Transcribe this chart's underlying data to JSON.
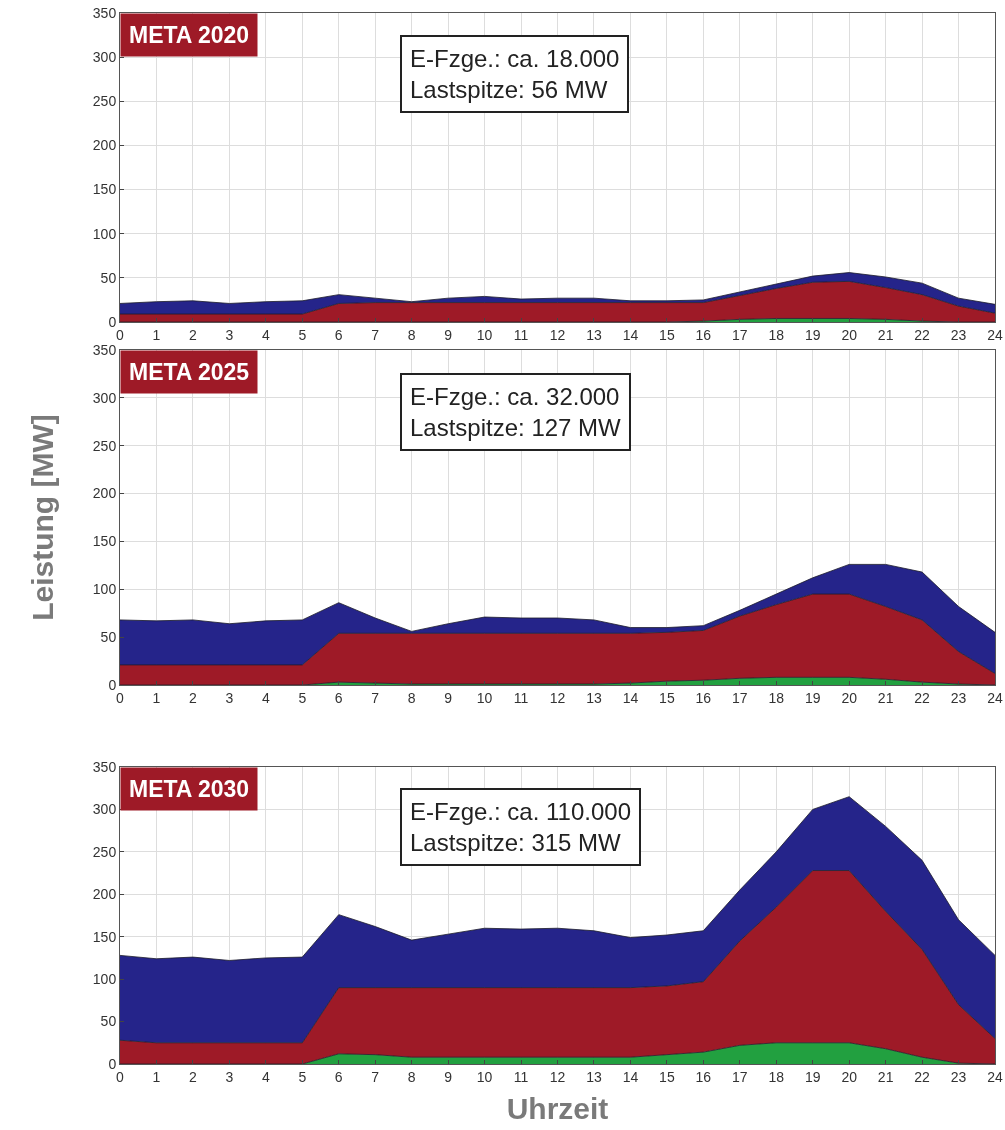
{
  "chart_data": [
    {
      "type": "area",
      "stacked": true,
      "annotations": [
        "META 2020",
        "E-Fzge.: ca. 18.000",
        "Lastspitze: 56 MW"
      ],
      "x": [
        0,
        1,
        2,
        3,
        4,
        5,
        6,
        7,
        8,
        9,
        10,
        11,
        12,
        13,
        14,
        15,
        16,
        17,
        18,
        19,
        20,
        21,
        22,
        23,
        24
      ],
      "xlim": [
        0,
        24
      ],
      "xticks": [
        0,
        1,
        2,
        3,
        4,
        5,
        6,
        7,
        8,
        9,
        10,
        11,
        12,
        13,
        14,
        15,
        16,
        17,
        18,
        19,
        20,
        21,
        22,
        23,
        24
      ],
      "ylim": [
        0,
        350
      ],
      "yticks": [
        0,
        50,
        100,
        150,
        200,
        250,
        300,
        350
      ],
      "grid": true,
      "series": [
        {
          "color": "#22a040",
          "values": [
            0,
            0,
            0,
            0,
            0,
            0,
            0,
            0,
            0,
            0,
            0,
            0,
            0,
            0,
            0,
            0,
            1,
            3,
            4,
            4,
            4,
            3,
            1,
            0,
            0
          ]
        },
        {
          "color": "#9e1a27",
          "values": [
            9,
            9,
            9,
            9,
            9,
            9,
            21,
            22,
            22,
            22,
            22,
            22,
            22,
            22,
            22,
            22,
            21,
            27,
            34,
            41,
            42,
            36,
            30,
            18,
            10
          ]
        },
        {
          "color": "#25248a",
          "values": [
            12,
            14,
            15,
            12,
            14,
            15,
            10,
            5,
            1,
            5,
            7,
            4,
            5,
            5,
            2,
            2,
            3,
            4,
            5,
            7,
            10,
            12,
            13,
            9,
            10
          ]
        }
      ]
    },
    {
      "type": "area",
      "stacked": true,
      "ylabel": "Leistung [MW]",
      "annotations": [
        "META 2025",
        "E-Fzge.: ca. 32.000",
        "Lastspitze: 127 MW"
      ],
      "x": [
        0,
        1,
        2,
        3,
        4,
        5,
        6,
        7,
        8,
        9,
        10,
        11,
        12,
        13,
        14,
        15,
        16,
        17,
        18,
        19,
        20,
        21,
        22,
        23,
        24
      ],
      "xlim": [
        0,
        24
      ],
      "xticks": [
        0,
        1,
        2,
        3,
        4,
        5,
        6,
        7,
        8,
        9,
        10,
        11,
        12,
        13,
        14,
        15,
        16,
        17,
        18,
        19,
        20,
        21,
        22,
        23,
        24
      ],
      "ylim": [
        0,
        350
      ],
      "yticks": [
        0,
        50,
        100,
        150,
        200,
        250,
        300,
        350
      ],
      "grid": true,
      "series": [
        {
          "color": "#22a040",
          "values": [
            0,
            0,
            0,
            0,
            0,
            0,
            3,
            2,
            1,
            1,
            1,
            1,
            1,
            1,
            2,
            4,
            5,
            7,
            8,
            8,
            8,
            6,
            3,
            1,
            0
          ]
        },
        {
          "color": "#9e1a27",
          "values": [
            21,
            21,
            21,
            21,
            21,
            21,
            51,
            52,
            53,
            53,
            53,
            53,
            53,
            53,
            52,
            51,
            52,
            65,
            76,
            87,
            87,
            76,
            65,
            34,
            12
          ]
        },
        {
          "color": "#25248a",
          "values": [
            47,
            46,
            47,
            43,
            46,
            47,
            32,
            16,
            2,
            10,
            17,
            16,
            16,
            14,
            6,
            5,
            5,
            6,
            11,
            17,
            31,
            44,
            50,
            47,
            43
          ]
        }
      ]
    },
    {
      "type": "area",
      "stacked": true,
      "xlabel": "Uhrzeit",
      "annotations": [
        "META 2030",
        "E-Fzge.: ca. 110.000",
        "Lastspitze: 315 MW"
      ],
      "x": [
        0,
        1,
        2,
        3,
        4,
        5,
        6,
        7,
        8,
        9,
        10,
        11,
        12,
        13,
        14,
        15,
        16,
        17,
        18,
        19,
        20,
        21,
        22,
        23,
        24
      ],
      "xlim": [
        0,
        24
      ],
      "xticks": [
        0,
        1,
        2,
        3,
        4,
        5,
        6,
        7,
        8,
        9,
        10,
        11,
        12,
        13,
        14,
        15,
        16,
        17,
        18,
        19,
        20,
        21,
        22,
        23,
        24
      ],
      "ylim": [
        0,
        350
      ],
      "yticks": [
        0,
        50,
        100,
        150,
        200,
        250,
        300,
        350
      ],
      "grid": true,
      "series": [
        {
          "color": "#22a040",
          "values": [
            0,
            0,
            0,
            0,
            0,
            0,
            12,
            11,
            8,
            8,
            8,
            8,
            8,
            8,
            8,
            11,
            14,
            22,
            25,
            25,
            25,
            18,
            8,
            1,
            0
          ]
        },
        {
          "color": "#9e1a27",
          "values": [
            28,
            25,
            25,
            25,
            25,
            25,
            78,
            79,
            82,
            82,
            82,
            82,
            82,
            82,
            82,
            81,
            83,
            123,
            160,
            203,
            203,
            162,
            127,
            69,
            30
          ]
        },
        {
          "color": "#25248a",
          "values": [
            100,
            99,
            101,
            97,
            100,
            101,
            86,
            72,
            56,
            63,
            70,
            69,
            70,
            67,
            59,
            60,
            60,
            60,
            65,
            72,
            87,
            100,
            105,
            100,
            98
          ]
        }
      ]
    }
  ]
}
